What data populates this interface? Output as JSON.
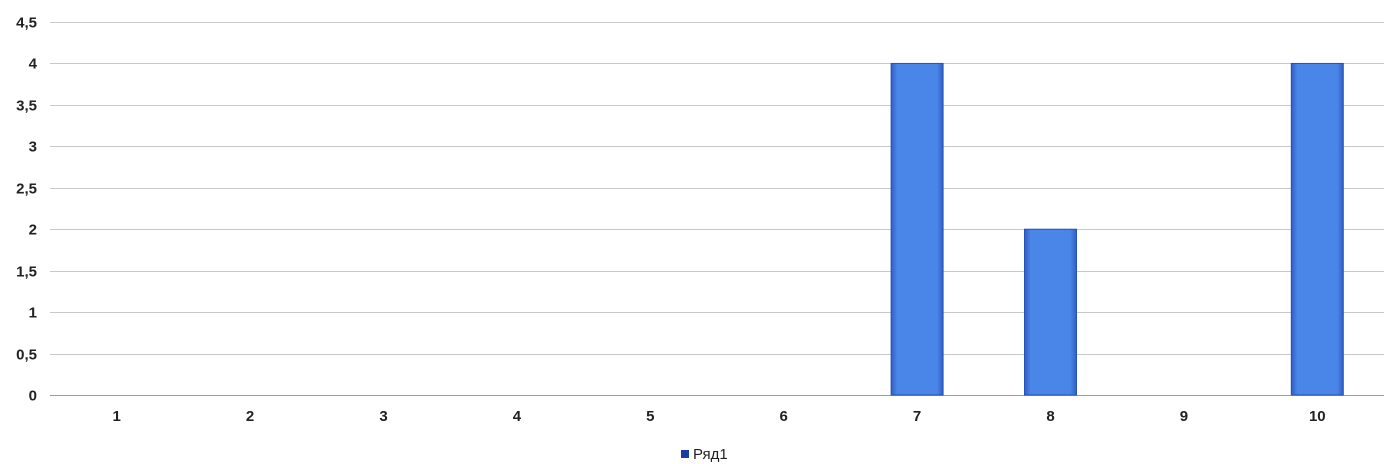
{
  "chart_data": {
    "type": "bar",
    "categories": [
      "1",
      "2",
      "3",
      "4",
      "5",
      "6",
      "7",
      "8",
      "9",
      "10"
    ],
    "series": [
      {
        "name": "Ряд1",
        "values": [
          0,
          0,
          0,
          0,
          0,
          0,
          4,
          2,
          0,
          4
        ],
        "color": "#4a86e8"
      }
    ],
    "ylim": [
      0,
      4.5
    ],
    "yticks": [
      "0",
      "0,5",
      "1",
      "1,5",
      "2",
      "2,5",
      "3",
      "3,5",
      "4",
      "4,5"
    ],
    "grid": true,
    "legend_position": "bottom",
    "legend_marker_color": "#1b3d9e"
  }
}
